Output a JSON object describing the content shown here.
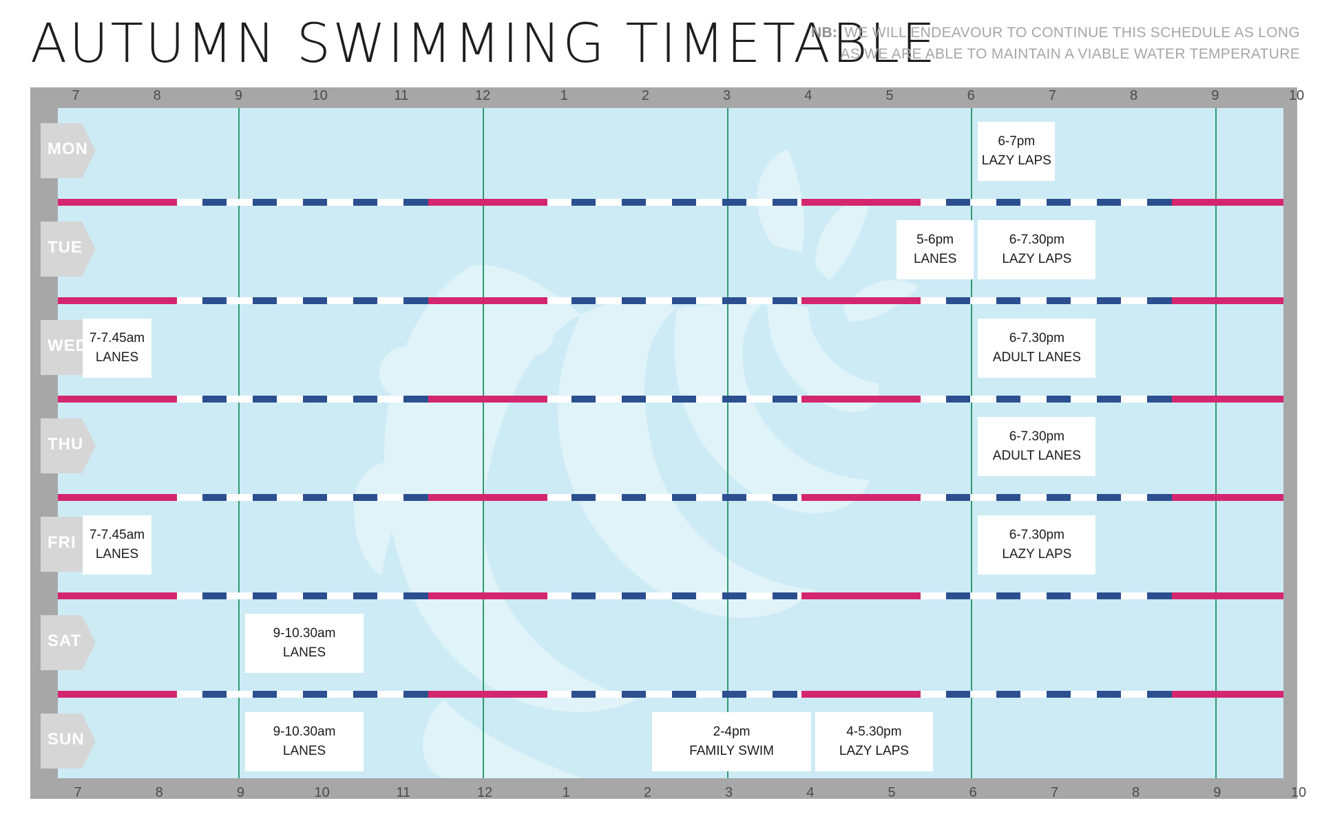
{
  "title": "AUTUMN SWIMMING TIMETABLE",
  "note": {
    "label": "NB:",
    "line1": "WE WILL ENDEAVOUR TO CONTINUE THIS SCHEDULE AS LONG",
    "line2": "AS WE ARE ABLE TO MAINTAIN A VIABLE WATER TEMPERATURE"
  },
  "hours": [
    "7",
    "8",
    "9",
    "10",
    "11",
    "12",
    "1",
    "2",
    "3",
    "4",
    "5",
    "6",
    "7",
    "8",
    "9",
    "10"
  ],
  "days": [
    {
      "label": "MON",
      "sessions": [
        {
          "time": "6-7pm",
          "name": "LAZY LAPS",
          "start": 18,
          "end": 19
        }
      ]
    },
    {
      "label": "TUE",
      "sessions": [
        {
          "time": "5-6pm",
          "name": "LANES",
          "start": 17,
          "end": 18
        },
        {
          "time": "6-7.30pm",
          "name": "LAZY LAPS",
          "start": 18,
          "end": 19.5
        }
      ]
    },
    {
      "label": "WED",
      "sessions": [
        {
          "time": "7-7.45am",
          "name": "LANES",
          "start": 7,
          "end": 7.75
        },
        {
          "time": "6-7.30pm",
          "name": "ADULT LANES",
          "start": 18,
          "end": 19.5
        }
      ]
    },
    {
      "label": "THU",
      "sessions": [
        {
          "time": "6-7.30pm",
          "name": "ADULT LANES",
          "start": 18,
          "end": 19.5
        }
      ]
    },
    {
      "label": "FRI",
      "sessions": [
        {
          "time": "7-7.45am",
          "name": "LANES",
          "start": 7,
          "end": 7.75
        },
        {
          "time": "6-7.30pm",
          "name": "LAZY LAPS",
          "start": 18,
          "end": 19.5
        }
      ]
    },
    {
      "label": "SAT",
      "sessions": [
        {
          "time": "9-10.30am",
          "name": "LANES",
          "start": 9,
          "end": 10.5
        }
      ]
    },
    {
      "label": "SUN",
      "sessions": [
        {
          "time": "9-10.30am",
          "name": "LANES",
          "start": 9,
          "end": 10.5
        },
        {
          "time": "2-4pm",
          "name": "FAMILY SWIM",
          "start": 14,
          "end": 16
        },
        {
          "time": "4-5.30pm",
          "name": "LAZY LAPS",
          "start": 16,
          "end": 17.5
        }
      ]
    }
  ],
  "colors": {
    "frame": "#a7a7a7",
    "water": "#cdebf5",
    "rope_pink": "#d4266e",
    "rope_blue": "#2b4f8f",
    "gridline": "#2e9a6f",
    "tag": "#d6d6d6"
  }
}
